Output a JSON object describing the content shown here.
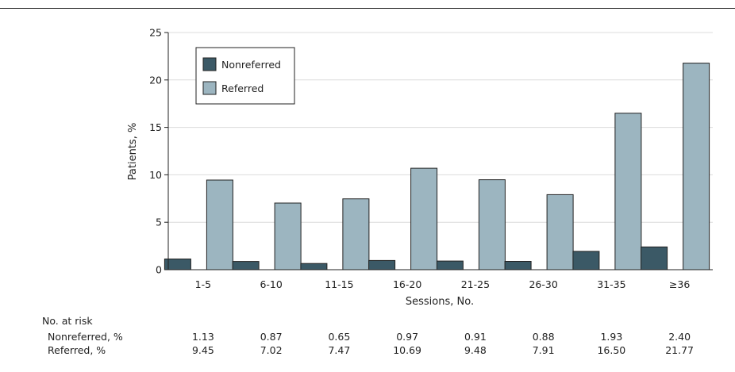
{
  "chart_data": {
    "type": "bar",
    "categories": [
      "1-5",
      "6-10",
      "11-15",
      "16-20",
      "21-25",
      "26-30",
      "31-35",
      "≥36"
    ],
    "series": [
      {
        "name": "Nonreferred",
        "color": "#3b5966",
        "values": [
          1.13,
          0.87,
          0.65,
          0.97,
          0.91,
          0.88,
          1.93,
          2.4
        ]
      },
      {
        "name": "Referred",
        "color": "#9cb5c0",
        "values": [
          9.45,
          7.02,
          7.47,
          10.69,
          9.48,
          7.91,
          16.5,
          21.77
        ]
      }
    ],
    "xlabel": "Sessions, No.",
    "ylabel": "Patients, %",
    "ylim": [
      0,
      25
    ],
    "yticks": [
      "0",
      "5",
      "10",
      "15",
      "20",
      "25"
    ],
    "grid": true,
    "legend": "top-left"
  },
  "risk_table": {
    "title": "No. at risk",
    "rows": [
      {
        "label": "Nonreferred, %",
        "values": [
          "1.13",
          "0.87",
          "0.65",
          "0.97",
          "0.91",
          "0.88",
          "1.93",
          "2.40"
        ]
      },
      {
        "label": "Referred, %",
        "values": [
          "9.45",
          "7.02",
          "7.47",
          "10.69",
          "9.48",
          "7.91",
          "16.50",
          "21.77"
        ]
      }
    ]
  }
}
